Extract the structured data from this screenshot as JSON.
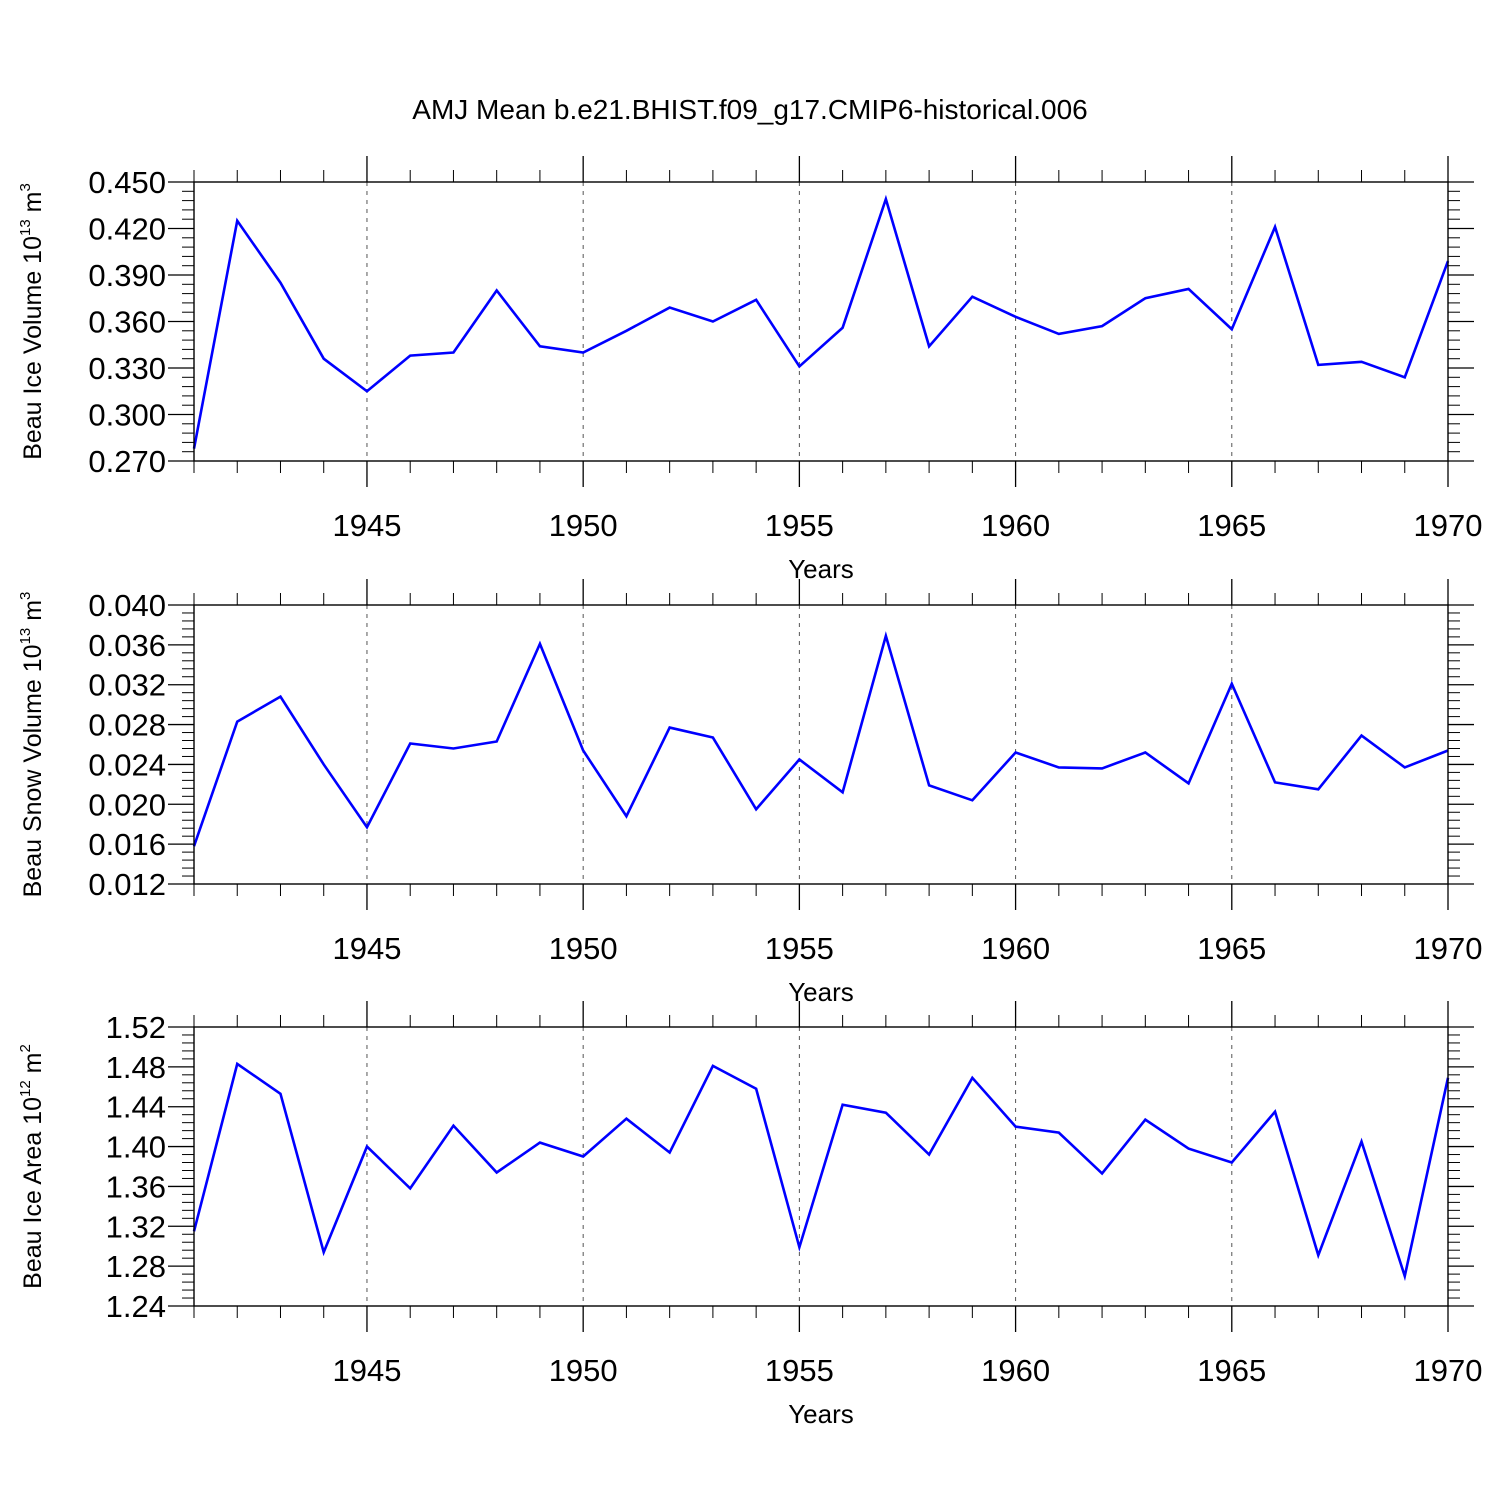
{
  "title": "AMJ Mean b.e21.BHIST.f09_g17.CMIP6-historical.006",
  "colors": {
    "line": "#0000ff",
    "frame": "#000000",
    "grid": "#555555"
  },
  "chart_data": [
    {
      "type": "line",
      "xlabel": "Years",
      "ylabel": {
        "text": "Beau Ice Volume 10",
        "exp": "13",
        "unit": " m",
        "unit_exp": "3"
      },
      "xlim": [
        1941,
        1970
      ],
      "ylim": [
        0.27,
        0.45
      ],
      "yticks": [
        "0.270",
        "0.300",
        "0.330",
        "0.360",
        "0.390",
        "0.420",
        "0.450"
      ],
      "xticks": [
        "1945",
        "1950",
        "1955",
        "1960",
        "1965",
        "1970"
      ],
      "x": [
        1941,
        1942,
        1943,
        1944,
        1945,
        1946,
        1947,
        1948,
        1949,
        1950,
        1951,
        1952,
        1953,
        1954,
        1955,
        1956,
        1957,
        1958,
        1959,
        1960,
        1961,
        1962,
        1963,
        1964,
        1965,
        1966,
        1967,
        1968,
        1969,
        1970
      ],
      "series": [
        {
          "values": [
            0.278,
            0.425,
            0.385,
            0.336,
            0.315,
            0.338,
            0.34,
            0.38,
            0.344,
            0.34,
            0.354,
            0.369,
            0.36,
            0.374,
            0.331,
            0.356,
            0.439,
            0.344,
            0.376,
            0.363,
            0.352,
            0.357,
            0.375,
            0.381,
            0.355,
            0.421,
            0.332,
            0.334,
            0.324,
            0.399
          ]
        }
      ]
    },
    {
      "type": "line",
      "xlabel": "Years",
      "ylabel": {
        "text": "Beau Snow Volume 10",
        "exp": "13",
        "unit": " m",
        "unit_exp": "3"
      },
      "xlim": [
        1941,
        1970
      ],
      "ylim": [
        0.012,
        0.04
      ],
      "yticks": [
        "0.012",
        "0.016",
        "0.020",
        "0.024",
        "0.028",
        "0.032",
        "0.036",
        "0.040"
      ],
      "xticks": [
        "1945",
        "1950",
        "1955",
        "1960",
        "1965",
        "1970"
      ],
      "x": [
        1941,
        1942,
        1943,
        1944,
        1945,
        1946,
        1947,
        1948,
        1949,
        1950,
        1951,
        1952,
        1953,
        1954,
        1955,
        1956,
        1957,
        1958,
        1959,
        1960,
        1961,
        1962,
        1963,
        1964,
        1965,
        1966,
        1967,
        1968,
        1969,
        1970
      ],
      "series": [
        {
          "values": [
            0.0158,
            0.0283,
            0.0308,
            0.024,
            0.0177,
            0.0261,
            0.0256,
            0.0263,
            0.0361,
            0.0254,
            0.0188,
            0.0277,
            0.0267,
            0.0195,
            0.0245,
            0.0212,
            0.0369,
            0.0219,
            0.0204,
            0.0252,
            0.0237,
            0.0236,
            0.0252,
            0.0221,
            0.0321,
            0.0222,
            0.0215,
            0.0269,
            0.0237,
            0.0254
          ]
        }
      ]
    },
    {
      "type": "line",
      "xlabel": "Years",
      "ylabel": {
        "text": "Beau Ice Area 10",
        "exp": "12",
        "unit": " m",
        "unit_exp": "2"
      },
      "xlim": [
        1941,
        1970
      ],
      "ylim": [
        1.24,
        1.52
      ],
      "yticks": [
        "1.24",
        "1.28",
        "1.32",
        "1.36",
        "1.40",
        "1.44",
        "1.48",
        "1.52"
      ],
      "xticks": [
        "1945",
        "1950",
        "1955",
        "1960",
        "1965",
        "1970"
      ],
      "x": [
        1941,
        1942,
        1943,
        1944,
        1945,
        1946,
        1947,
        1948,
        1949,
        1950,
        1951,
        1952,
        1953,
        1954,
        1955,
        1956,
        1957,
        1958,
        1959,
        1960,
        1961,
        1962,
        1963,
        1964,
        1965,
        1966,
        1967,
        1968,
        1969,
        1970
      ],
      "series": [
        {
          "values": [
            1.315,
            1.483,
            1.453,
            1.294,
            1.4,
            1.358,
            1.421,
            1.374,
            1.404,
            1.39,
            1.428,
            1.394,
            1.481,
            1.458,
            1.299,
            1.442,
            1.434,
            1.392,
            1.469,
            1.42,
            1.414,
            1.373,
            1.427,
            1.398,
            1.384,
            1.435,
            1.291,
            1.405,
            1.27,
            1.469
          ]
        }
      ]
    }
  ]
}
